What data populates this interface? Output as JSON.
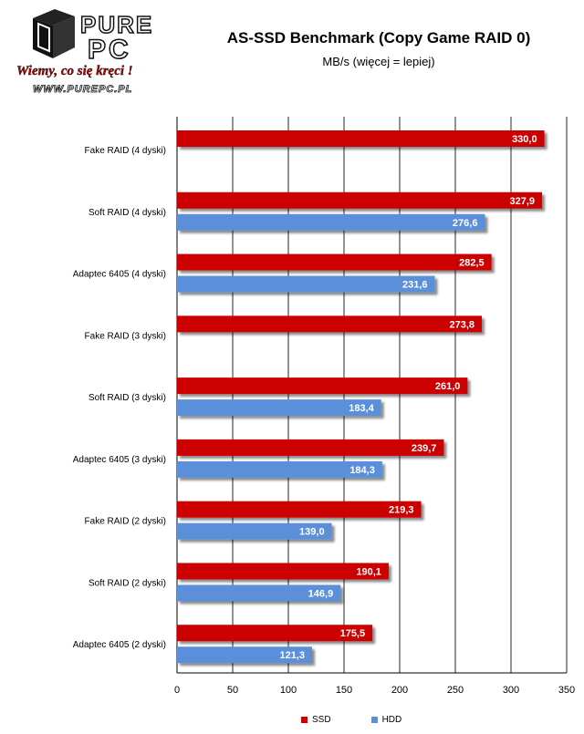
{
  "logo": {
    "brand_top": "PURE",
    "brand_bottom": "PC",
    "slogan": "Wiemy, co się kręci !",
    "url": "WWW.PUREPC.PL"
  },
  "chart_data": {
    "type": "bar",
    "orientation": "horizontal",
    "title": "AS-SSD Benchmark (Copy Game RAID 0)",
    "subtitle": "MB/s (więcej = lepiej)",
    "xlabel": "",
    "ylabel": "",
    "xlim": [
      0,
      350
    ],
    "xticks": [
      0,
      50,
      100,
      150,
      200,
      250,
      300,
      350
    ],
    "grid": "vertical",
    "legend_position": "bottom",
    "categories": [
      "Fake RAID (4 dyski)",
      "Soft RAID (4 dyski)",
      "Adaptec 6405 (4 dyski)",
      "Fake RAID (3 dyski)",
      "Soft RAID (3 dyski)",
      "Adaptec 6405 (3 dyski)",
      "Fake RAID (2 dyski)",
      "Soft RAID (2 dyski)",
      "Adaptec 6405 (2 dyski)"
    ],
    "series": [
      {
        "name": "SSD",
        "color": "#cc0000",
        "values": [
          330.0,
          327.9,
          282.5,
          273.8,
          261.0,
          239.7,
          219.3,
          190.1,
          175.5
        ],
        "labels": [
          "330,0",
          "327,9",
          "282,5",
          "273,8",
          "261,0",
          "239,7",
          "219,3",
          "190,1",
          "175,5"
        ]
      },
      {
        "name": "HDD",
        "color": "#5b8fd9",
        "values": [
          null,
          276.6,
          231.6,
          null,
          183.4,
          184.3,
          139.0,
          146.9,
          121.3
        ],
        "labels": [
          null,
          "276,6",
          "231,6",
          null,
          "183,4",
          "184,3",
          "139,0",
          "146,9",
          "121,3"
        ]
      }
    ]
  }
}
